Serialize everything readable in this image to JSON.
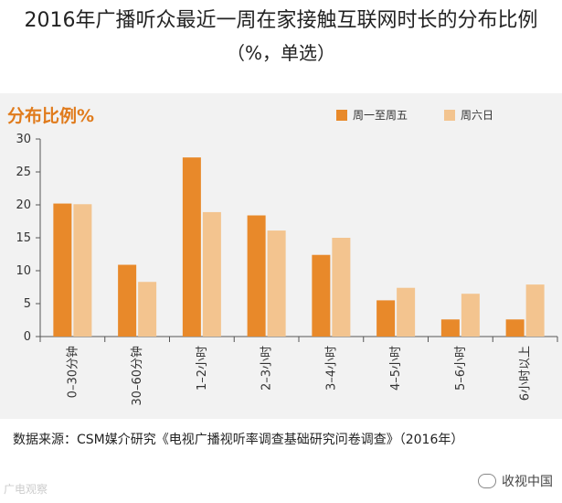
{
  "chart_data": {
    "type": "bar",
    "title": "2016年广播听众最近一周在家接触互联网时长的分布比例",
    "subtitle": "（%，单选）",
    "ylabel": "分布比例%",
    "xlabel": "",
    "ylim": [
      0,
      30
    ],
    "yticks": [
      0,
      5,
      10,
      15,
      20,
      25,
      30
    ],
    "categories": [
      "0–30分钟",
      "30–60分钟",
      "1–2小时",
      "2–3小时",
      "3–4小时",
      "4–5小时",
      "5–6小时",
      "6小时以上"
    ],
    "series": [
      {
        "name": "周一至周五",
        "color": "#e8892a",
        "values": [
          20.2,
          10.9,
          27.2,
          18.4,
          12.4,
          5.5,
          2.6,
          2.6
        ]
      },
      {
        "name": "周六日",
        "color": "#f3c48f",
        "values": [
          20.1,
          8.3,
          18.9,
          16.1,
          15.0,
          7.4,
          6.5,
          7.9
        ]
      }
    ],
    "legend_position": "top-right",
    "grid": false
  },
  "source": "数据来源：CSM媒介研究《电视广播视听率调查基础研究问卷调查》（2016年）",
  "watermark_left": "广电观察",
  "watermark_right": "收视中国"
}
